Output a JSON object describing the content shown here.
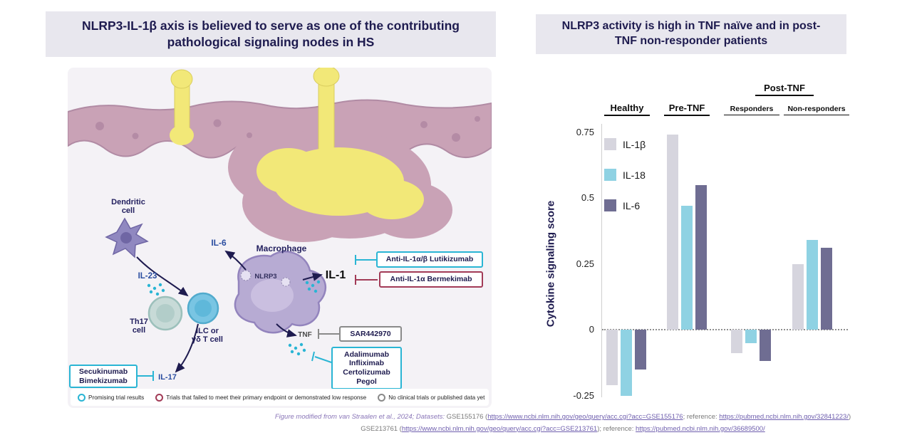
{
  "left_panel": {
    "title": "NLRP3-IL-1β axis is believed to serve as one of the contributing pathological signaling nodes in HS",
    "labels": {
      "dendritic_line1": "Dendritic",
      "dendritic_line2": "cell",
      "il23": "IL-23",
      "th17_line1": "Th17",
      "th17_line2": "cell",
      "ilc_line1": "ILC or",
      "ilc_line2": "γδ T cell",
      "il6": "IL-6",
      "macrophage": "Macrophage",
      "nlrp3": "NLRP3",
      "il1": "IL-1",
      "tnf": "TNF",
      "il17": "IL-17"
    },
    "drug_boxes": {
      "lutikizumab": "Anti-IL-1α/β Lutikizumab",
      "bermekimab": "Anti-IL-1α Bermekimab",
      "sar": "SAR442970",
      "tnf_line1": "Adalimumab",
      "tnf_line2": "Infliximab",
      "tnf_line3": "Certolizumab",
      "tnf_line4": "Pegol",
      "il17_line1": "Secukinumab",
      "il17_line2": "Bimekizumab"
    },
    "status_colors": {
      "promising": "#2ab5d4",
      "failed": "#a23b57",
      "none": "#8a8a8a"
    },
    "legend": [
      {
        "label": "Promising trial results",
        "status": "promising"
      },
      {
        "label": "Trials that failed to meet their primary endpoint or demonstrated low response",
        "status": "failed"
      },
      {
        "label": "No clinical trials or published data yet",
        "status": "none"
      }
    ]
  },
  "right_panel": {
    "title": "NLRP3 activity is high in TNF naïve and in post-TNF non-responder patients",
    "group_headers": {
      "healthy": "Healthy",
      "pre_tnf": "Pre-TNF",
      "post_tnf": "Post-TNF",
      "responders": "Responders",
      "non_responders": "Non-responders"
    }
  },
  "chart_data": {
    "type": "bar",
    "title": "NLRP3 activity is high in TNF naïve and in post-TNF non-responder patients",
    "ylabel": "Cytokine signaling score",
    "categories": [
      "Healthy",
      "Pre-TNF",
      "Post-TNF Responders",
      "Post-TNF Non-responders"
    ],
    "series": [
      {
        "name": "IL-1β",
        "color": "#d6d5de",
        "values": [
          -0.21,
          0.74,
          -0.09,
          0.25
        ]
      },
      {
        "name": "IL-18",
        "color": "#8fd2e3",
        "values": [
          -0.25,
          0.47,
          -0.05,
          0.34
        ]
      },
      {
        "name": "IL-6",
        "color": "#6f6d92",
        "values": [
          -0.15,
          0.55,
          -0.12,
          0.31
        ]
      }
    ],
    "yticks": [
      0.75,
      0.5,
      0.25,
      0,
      -0.25
    ],
    "ylim": [
      -0.28,
      0.78
    ],
    "zero_line": "dotted",
    "legend_position": "top-left",
    "grid": false
  },
  "footer": {
    "line1": {
      "intro": "Figure modified from van Straalen et al., 2024; Datasets: ",
      "ds": "GSE155176 (",
      "link1": "https://www.ncbi.nlm.nih.gov/geo/query/acc.cgi?acc=GSE155176",
      "mid": "; reference: ",
      "link2": "https://pubmed.ncbi.nlm.nih.gov/32841223/",
      "end": ")"
    },
    "line2": {
      "ds": "GSE213761 (",
      "link1": "https://www.ncbi.nlm.nih.gov/geo/query/acc.cgi?acc=GSE213761",
      "mid": "); reference: ",
      "link2": "https://pubmed.ncbi.nlm.nih.gov/36689500/"
    }
  }
}
